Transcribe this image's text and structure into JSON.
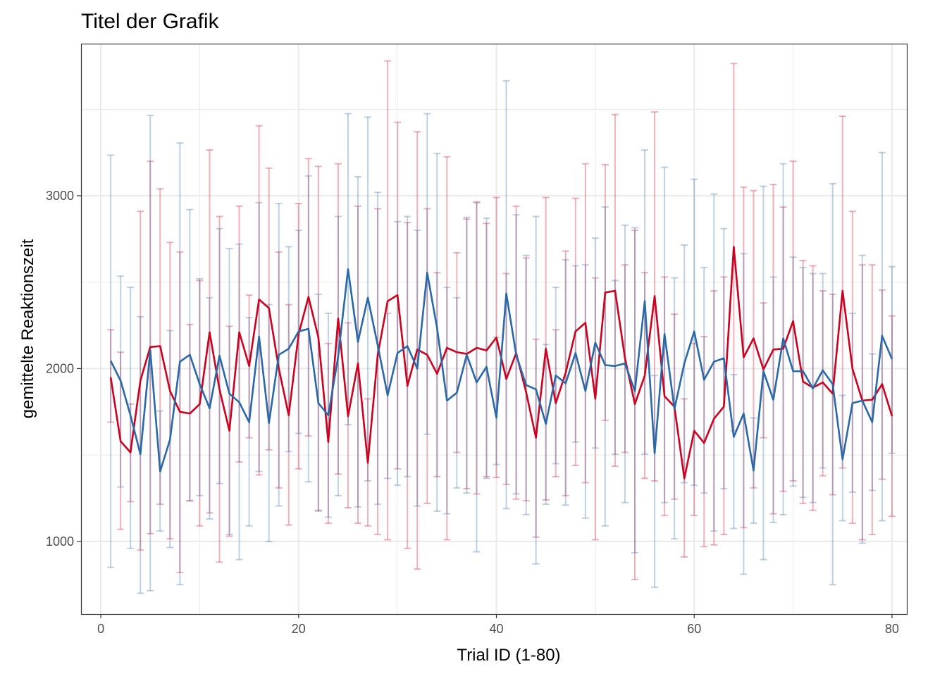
{
  "chart_data": {
    "type": "line",
    "title": "Titel der Grafik",
    "xlabel": "Trial ID (1-80)",
    "ylabel": "gemittelte Reaktionszeit",
    "xlim": [
      -2,
      81.5
    ],
    "ylim": [
      580,
      3880
    ],
    "xticks": [
      0,
      20,
      40,
      60,
      80
    ],
    "yticks": [
      1000,
      2000,
      3000
    ],
    "grid": true,
    "x": [
      1,
      2,
      3,
      4,
      5,
      6,
      7,
      8,
      9,
      10,
      11,
      12,
      13,
      14,
      15,
      16,
      17,
      18,
      19,
      20,
      21,
      22,
      23,
      24,
      25,
      26,
      27,
      28,
      29,
      30,
      31,
      32,
      33,
      34,
      35,
      36,
      37,
      38,
      39,
      40,
      41,
      42,
      43,
      44,
      45,
      46,
      47,
      48,
      49,
      50,
      51,
      52,
      53,
      54,
      55,
      56,
      57,
      58,
      59,
      60,
      61,
      62,
      63,
      64,
      65,
      66,
      67,
      68,
      69,
      70,
      71,
      72,
      73,
      74,
      75,
      76,
      77,
      78,
      79,
      80
    ],
    "series": [
      {
        "color": "#cb0020",
        "values": [
          1950,
          1580,
          1515,
          1930,
          2125,
          2130,
          1870,
          1750,
          1740,
          1795,
          2210,
          1880,
          1640,
          2210,
          2015,
          2400,
          2350,
          2000,
          1730,
          2200,
          2415,
          2180,
          1575,
          2290,
          1725,
          2030,
          1455,
          2080,
          2390,
          2425,
          1900,
          2110,
          2080,
          1970,
          2120,
          2095,
          2085,
          2120,
          2105,
          2180,
          1940,
          2090,
          1865,
          1600,
          2115,
          1800,
          1975,
          2215,
          2265,
          1825,
          2440,
          2450,
          2060,
          1795,
          1960,
          2420,
          1840,
          1780,
          1365,
          1640,
          1570,
          1710,
          1780,
          2705,
          2065,
          2175,
          1995,
          2110,
          2115,
          2275,
          1925,
          1890,
          1920,
          1855,
          2450,
          2000,
          1815,
          1820,
          1910,
          1725
        ],
        "upper": [
          2225,
          2095,
          1795,
          2910,
          3200,
          3040,
          2730,
          2675,
          2255,
          2510,
          3265,
          2880,
          2245,
          2940,
          2425,
          3405,
          3160,
          2675,
          2370,
          2955,
          3215,
          3170,
          2145,
          3185,
          2265,
          2940,
          1825,
          2925,
          3780,
          3425,
          2845,
          3370,
          2925,
          2555,
          3225,
          2670,
          2865,
          2965,
          2840,
          2990,
          2550,
          2940,
          2640,
          2170,
          2990,
          2225,
          2680,
          2985,
          3185,
          2525,
          3180,
          3470,
          2600,
          2800,
          2555,
          3485,
          2530,
          2315,
          1825,
          2145,
          2185,
          2450,
          2530,
          3765,
          3050,
          3030,
          2380,
          3065,
          2935,
          3200,
          2625,
          2595,
          2450,
          2430,
          3460,
          2910,
          2600,
          2600,
          2455,
          2305
        ],
        "lower": [
          1690,
          1070,
          1230,
          950,
          1045,
          1215,
          1015,
          820,
          1235,
          1090,
          1165,
          880,
          1030,
          1460,
          1600,
          1385,
          1530,
          1310,
          1095,
          1420,
          1610,
          1180,
          1105,
          1390,
          1195,
          1105,
          1090,
          1040,
          1010,
          1420,
          960,
          840,
          1220,
          1375,
          1010,
          1515,
          1305,
          1275,
          1375,
          1370,
          1330,
          1245,
          1235,
          1025,
          1240,
          1375,
          1265,
          1440,
          1340,
          1010,
          1700,
          1435,
          1515,
          780,
          1365,
          1350,
          1150,
          1245,
          910,
          1150,
          970,
          980,
          1040,
          1640,
          1080,
          1310,
          1600,
          1160,
          1290,
          1350,
          1220,
          1180,
          1380,
          1270,
          1425,
          1105,
          1010,
          1040,
          1360,
          1145
        ]
      },
      {
        "color": "#2b68a7",
        "values": [
          2045,
          1930,
          1730,
          1505,
          2105,
          1405,
          1590,
          2040,
          2080,
          1910,
          1770,
          2075,
          1855,
          1805,
          1690,
          2185,
          1685,
          2080,
          2115,
          2215,
          2230,
          1800,
          1730,
          2070,
          2575,
          2155,
          2410,
          2135,
          1845,
          2090,
          2130,
          2000,
          2555,
          2235,
          1815,
          1860,
          2080,
          1920,
          2010,
          1715,
          2435,
          2080,
          1905,
          1880,
          1680,
          1960,
          1915,
          2090,
          1870,
          2150,
          2020,
          2015,
          2030,
          1870,
          2390,
          1510,
          2200,
          1765,
          2030,
          2215,
          1935,
          2040,
          2060,
          1605,
          1740,
          1410,
          1985,
          1820,
          2175,
          1985,
          1985,
          1885,
          1990,
          1910,
          1475,
          1800,
          1815,
          1690,
          2190,
          2055
        ],
        "upper": [
          3235,
          2535,
          2470,
          2300,
          3465,
          1755,
          2220,
          3305,
          2920,
          2520,
          2410,
          2810,
          2695,
          2720,
          2295,
          2960,
          2370,
          2955,
          2705,
          2800,
          3115,
          2430,
          2320,
          2880,
          3475,
          3110,
          3455,
          3020,
          2320,
          2850,
          2880,
          2800,
          3475,
          3245,
          2470,
          2410,
          2875,
          2960,
          2870,
          2180,
          3665,
          2890,
          2655,
          2880,
          2140,
          2470,
          2630,
          2595,
          2600,
          2755,
          2935,
          2510,
          2830,
          2815,
          3265,
          1960,
          3165,
          2525,
          2715,
          3095,
          2585,
          3010,
          2810,
          1965,
          2665,
          1715,
          3055,
          2530,
          3185,
          2645,
          2585,
          2550,
          2550,
          3070,
          1845,
          2320,
          2655,
          2085,
          3250,
          2590
        ],
        "lower": [
          850,
          1315,
          960,
          700,
          715,
          1060,
          965,
          750,
          1235,
          1265,
          1130,
          1335,
          1040,
          895,
          1090,
          1405,
          1000,
          1205,
          1520,
          1625,
          1345,
          1175,
          1140,
          1265,
          1675,
          1200,
          1350,
          1215,
          1365,
          1325,
          1375,
          1205,
          1620,
          1175,
          1160,
          1310,
          1280,
          940,
          1365,
          1445,
          1190,
          1275,
          1155,
          870,
          1215,
          1450,
          1210,
          1575,
          1135,
          1540,
          1090,
          1505,
          1225,
          935,
          1505,
          735,
          1225,
          1015,
          1340,
          1325,
          1280,
          1060,
          1305,
          1075,
          810,
          1105,
          895,
          1110,
          1155,
          1320,
          1255,
          1225,
          1425,
          750,
          1120,
          1285,
          990,
          1295,
          1120,
          1510
        ]
      }
    ]
  }
}
